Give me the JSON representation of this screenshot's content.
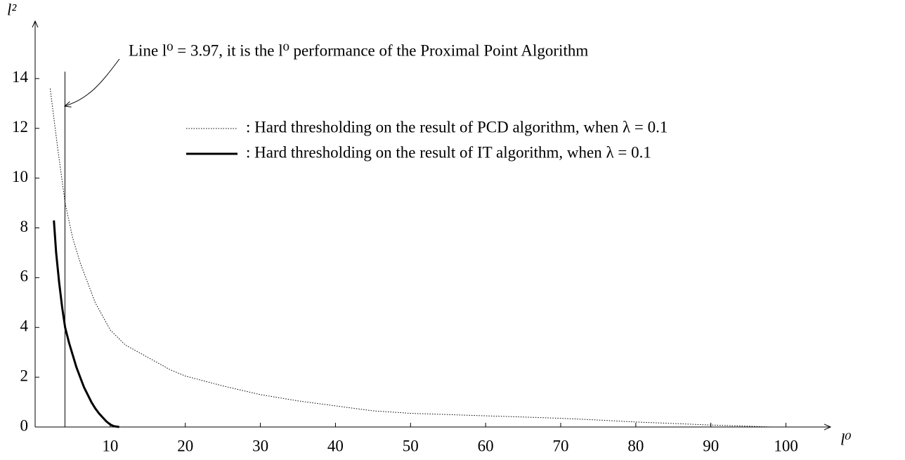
{
  "chart_data": {
    "type": "line",
    "x_label": "l⁰",
    "y_label": "l²",
    "annotation": "Line l⁰ = 3.97, it is the l⁰ performance of the Proximal Point Algorithm",
    "vline_x": 3.97,
    "xlim": [
      0,
      105
    ],
    "ylim": [
      0,
      16
    ],
    "xticks": [
      10,
      20,
      30,
      40,
      50,
      60,
      70,
      80,
      90,
      100
    ],
    "yticks": [
      0,
      2,
      4,
      6,
      8,
      10,
      12,
      14
    ],
    "series": [
      {
        "name": ": Hard thresholding on the result of PCD algorithm, when λ = 0.1",
        "color": "#000000",
        "style": "dotted",
        "x": [
          2,
          3,
          4,
          5,
          6,
          8,
          10,
          12,
          15,
          18,
          20,
          25,
          30,
          35,
          40,
          45,
          50,
          55,
          60,
          65,
          70,
          75,
          80,
          85,
          90,
          95,
          98
        ],
        "values": [
          13.6,
          11.2,
          9.0,
          7.6,
          6.6,
          5.0,
          3.9,
          3.3,
          2.8,
          2.3,
          2.05,
          1.65,
          1.3,
          1.05,
          0.85,
          0.65,
          0.55,
          0.5,
          0.45,
          0.4,
          0.35,
          0.28,
          0.2,
          0.14,
          0.08,
          0.03,
          0.0
        ]
      },
      {
        "name": ": Hard thresholding on the result of IT algorithm, when λ = 0.1",
        "color": "#000000",
        "style": "solid",
        "x": [
          2.5,
          2.8,
          3.2,
          3.6,
          4,
          4.5,
          5,
          5.5,
          6,
          6.5,
          7,
          7.5,
          8,
          8.5,
          9,
          9.5,
          10,
          10.5,
          11.2
        ],
        "values": [
          8.3,
          7.0,
          5.8,
          4.8,
          4.0,
          3.4,
          2.9,
          2.4,
          2.0,
          1.6,
          1.3,
          1.0,
          0.75,
          0.55,
          0.38,
          0.22,
          0.1,
          0.03,
          0.0
        ]
      }
    ]
  }
}
